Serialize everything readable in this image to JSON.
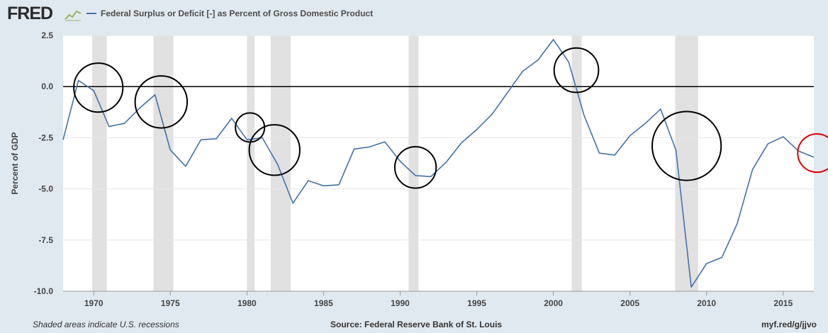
{
  "header": {
    "logo_text": "FRED",
    "logo_icon": "chart-line-icon",
    "legend_label": "Federal Surplus or Deficit [-] as Percent of Gross Domestic Product"
  },
  "footer": {
    "note": "Shaded areas indicate U.S. recessions",
    "source": "Source: Federal Reserve Bank of St. Louis",
    "link": "myf.red/g/jjvo"
  },
  "colors": {
    "series": "#4572a7",
    "plot_bg": "#ffffff",
    "page_bg": "#e1e9f0",
    "recession": "#e1e1e1"
  },
  "chart_data": {
    "type": "line",
    "title": "",
    "xlabel": "",
    "ylabel": "Percent of GDP",
    "xlim": [
      1968,
      2017
    ],
    "ylim": [
      -10,
      2.5
    ],
    "yticks": [
      2.5,
      0.0,
      -2.5,
      -5.0,
      -7.5,
      -10.0
    ],
    "ytick_labels": [
      "2.5",
      "0.0",
      "-2.5",
      "-5.0",
      "-7.5",
      "-10.0"
    ],
    "xticks": [
      1970,
      1975,
      1980,
      1985,
      1990,
      1995,
      2000,
      2005,
      2010,
      2015
    ],
    "xtick_labels": [
      "1970",
      "1975",
      "1980",
      "1985",
      "1990",
      "1995",
      "2000",
      "2005",
      "2010",
      "2015"
    ],
    "grid": "horizontal",
    "zero_line": 0,
    "recessions": [
      [
        1969.9,
        1970.85
      ],
      [
        1973.9,
        1975.2
      ],
      [
        1980.0,
        1980.5
      ],
      [
        1981.55,
        1982.85
      ],
      [
        1990.55,
        1991.2
      ],
      [
        2001.2,
        2001.85
      ],
      [
        2007.95,
        2009.45
      ]
    ],
    "series": [
      {
        "name": "Federal Surplus or Deficit [-] as Percent of Gross Domestic Product",
        "x": [
          1968,
          1969,
          1970,
          1971,
          1972,
          1973,
          1974,
          1975,
          1976,
          1977,
          1978,
          1979,
          1980,
          1981,
          1982,
          1983,
          1984,
          1985,
          1986,
          1987,
          1988,
          1989,
          1990,
          1991,
          1992,
          1993,
          1994,
          1995,
          1996,
          1997,
          1998,
          1999,
          2000,
          2001,
          2002,
          2003,
          2004,
          2005,
          2006,
          2007,
          2008,
          2009,
          2010,
          2011,
          2012,
          2013,
          2014,
          2015,
          2016,
          2017
        ],
        "y": [
          -2.6,
          0.3,
          -0.2,
          -1.95,
          -1.8,
          -1.05,
          -0.4,
          -3.1,
          -3.9,
          -2.6,
          -2.55,
          -1.55,
          -2.6,
          -2.5,
          -3.8,
          -5.7,
          -4.6,
          -4.85,
          -4.8,
          -3.05,
          -2.95,
          -2.7,
          -3.65,
          -4.35,
          -4.4,
          -3.7,
          -2.75,
          -2.1,
          -1.35,
          -0.3,
          0.75,
          1.3,
          2.3,
          1.2,
          -1.4,
          -3.25,
          -3.35,
          -2.4,
          -1.8,
          -1.1,
          -3.1,
          -9.8,
          -8.65,
          -8.35,
          -6.7,
          -4.05,
          -2.8,
          -2.45,
          -3.15,
          -3.45
        ]
      }
    ],
    "annotations": [
      {
        "shape": "circle",
        "color": "black",
        "cx": 1970.3,
        "cy": -0.05,
        "r": 1.6
      },
      {
        "shape": "circle",
        "color": "black",
        "cx": 1974.4,
        "cy": -0.75,
        "r": 1.7
      },
      {
        "shape": "circle",
        "color": "black",
        "cx": 1980.2,
        "cy": -2.0,
        "r": 0.95
      },
      {
        "shape": "circle",
        "color": "black",
        "cx": 1981.8,
        "cy": -3.1,
        "r": 1.65
      },
      {
        "shape": "circle",
        "color": "black",
        "cx": 1991.0,
        "cy": -3.95,
        "r": 1.35
      },
      {
        "shape": "circle",
        "color": "black",
        "cx": 2001.5,
        "cy": 0.8,
        "r": 1.45
      },
      {
        "shape": "circle",
        "color": "black",
        "cx": 2008.7,
        "cy": -2.9,
        "r": 2.25
      },
      {
        "shape": "circle",
        "color": "red",
        "cx": 2017.2,
        "cy": -3.25,
        "r": 1.25
      }
    ]
  }
}
